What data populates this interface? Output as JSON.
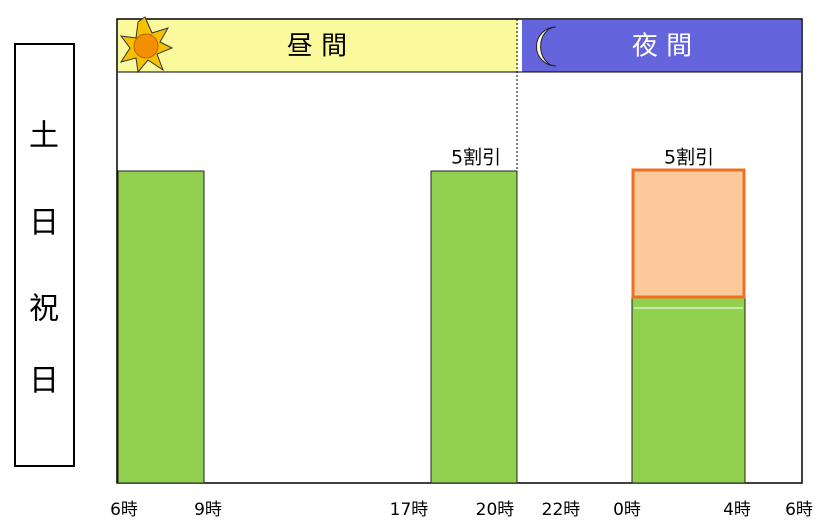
{
  "side_label": [
    "土",
    "日",
    "祝",
    "日"
  ],
  "header": {
    "day": "昼 間",
    "night": "夜 間"
  },
  "discounts": [
    "5割引",
    "5割引"
  ],
  "time_labels": [
    "6時",
    "9時",
    "17時",
    "20時",
    "22時",
    "0時",
    "4時",
    "6時"
  ]
}
